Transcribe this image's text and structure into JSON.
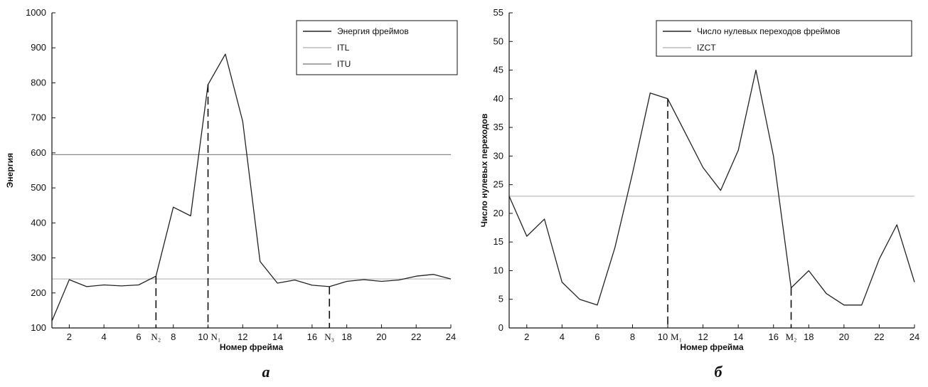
{
  "chart_data": [
    {
      "type": "line",
      "panel_label": "а",
      "xlabel": "Номер фрейма",
      "ylabel": "Энергия",
      "xlim": [
        1,
        24
      ],
      "ylim": [
        100,
        1000
      ],
      "xticks": [
        2,
        4,
        6,
        8,
        10,
        12,
        14,
        16,
        18,
        20,
        22,
        24
      ],
      "yticks": [
        100,
        200,
        300,
        400,
        500,
        600,
        700,
        800,
        900,
        1000
      ],
      "legend_position": "top-right",
      "series": [
        {
          "name": "Энергия фреймов",
          "color": "#222222",
          "x": [
            1,
            2,
            3,
            4,
            5,
            6,
            7,
            8,
            9,
            10,
            11,
            12,
            13,
            14,
            15,
            16,
            17,
            18,
            19,
            20,
            21,
            22,
            23,
            24
          ],
          "y": [
            120,
            238,
            218,
            223,
            220,
            223,
            248,
            445,
            420,
            795,
            882,
            690,
            290,
            228,
            237,
            222,
            218,
            233,
            238,
            233,
            237,
            248,
            253,
            240
          ]
        }
      ],
      "hlines": [
        {
          "name": "ITL",
          "value": 240,
          "color": "#bbbbbb"
        },
        {
          "name": "ITU",
          "value": 595,
          "color": "#8a8a8a"
        }
      ],
      "markers": [
        {
          "label": "N₂",
          "x": 7,
          "y": 248
        },
        {
          "label": "N₁",
          "x": 10,
          "y": 795
        },
        {
          "label": "N₃",
          "x": 17,
          "y": 218
        }
      ]
    },
    {
      "type": "line",
      "panel_label": "б",
      "xlabel": "Номер фрейма",
      "ylabel": "Число нулевых переходов",
      "xlim": [
        1,
        24
      ],
      "ylim": [
        0,
        55
      ],
      "xticks": [
        2,
        4,
        6,
        8,
        10,
        12,
        14,
        16,
        18,
        20,
        22,
        24
      ],
      "yticks": [
        0,
        5,
        10,
        15,
        20,
        25,
        30,
        35,
        40,
        45,
        50,
        55
      ],
      "legend_position": "top-right",
      "series": [
        {
          "name": "Число нулевых переходов фреймов",
          "color": "#222222",
          "x": [
            1,
            2,
            3,
            4,
            5,
            6,
            7,
            8,
            9,
            10,
            11,
            12,
            13,
            14,
            15,
            16,
            17,
            18,
            19,
            20,
            21,
            22,
            23,
            24
          ],
          "y": [
            23,
            16,
            19,
            8,
            5,
            4,
            14,
            27,
            41,
            40,
            34,
            28,
            24,
            31,
            45,
            30,
            7,
            10,
            6,
            4,
            4,
            12,
            18,
            8
          ]
        }
      ],
      "hlines": [
        {
          "name": "IZCT",
          "value": 23,
          "color": "#bbbbbb"
        }
      ],
      "markers": [
        {
          "label": "M₁",
          "x": 10,
          "y": 40
        },
        {
          "label": "M₂",
          "x": 17,
          "y": 7
        }
      ]
    }
  ]
}
